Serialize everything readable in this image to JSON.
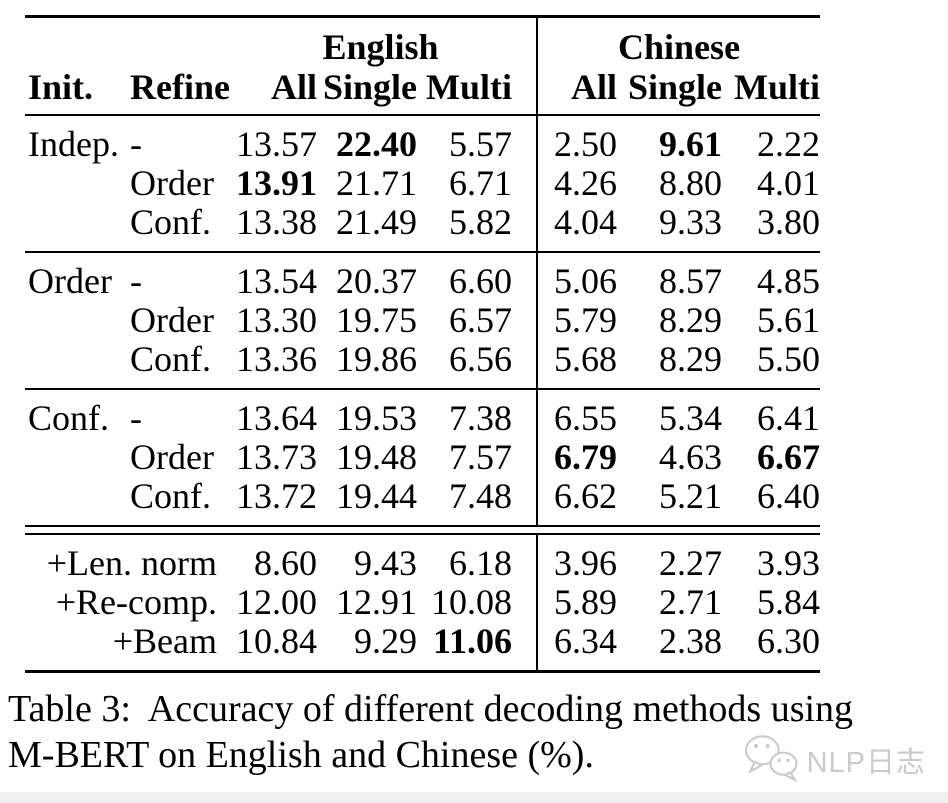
{
  "table": {
    "headers": {
      "init": "Init.",
      "refine": "Refine",
      "english": "English",
      "chinese": "Chinese",
      "all": "All",
      "single": "Single",
      "multi": "Multi"
    },
    "blocks": [
      {
        "init": "Indep.",
        "rows": [
          {
            "refine": "-",
            "cells": [
              {
                "v": "13.57"
              },
              {
                "v": "22.40",
                "bold": true
              },
              {
                "v": "5.57"
              },
              {
                "v": "2.50"
              },
              {
                "v": "9.61",
                "bold": true
              },
              {
                "v": "2.22"
              }
            ]
          },
          {
            "refine": "Order",
            "cells": [
              {
                "v": "13.91",
                "bold": true
              },
              {
                "v": "21.71"
              },
              {
                "v": "6.71"
              },
              {
                "v": "4.26"
              },
              {
                "v": "8.80"
              },
              {
                "v": "4.01"
              }
            ]
          },
          {
            "refine": "Conf.",
            "cells": [
              {
                "v": "13.38"
              },
              {
                "v": "21.49"
              },
              {
                "v": "5.82"
              },
              {
                "v": "4.04"
              },
              {
                "v": "9.33"
              },
              {
                "v": "3.80"
              }
            ]
          }
        ]
      },
      {
        "init": "Order",
        "rows": [
          {
            "refine": "-",
            "cells": [
              {
                "v": "13.54"
              },
              {
                "v": "20.37"
              },
              {
                "v": "6.60"
              },
              {
                "v": "5.06"
              },
              {
                "v": "8.57"
              },
              {
                "v": "4.85"
              }
            ]
          },
          {
            "refine": "Order",
            "cells": [
              {
                "v": "13.30"
              },
              {
                "v": "19.75"
              },
              {
                "v": "6.57"
              },
              {
                "v": "5.79"
              },
              {
                "v": "8.29"
              },
              {
                "v": "5.61"
              }
            ]
          },
          {
            "refine": "Conf.",
            "cells": [
              {
                "v": "13.36"
              },
              {
                "v": "19.86"
              },
              {
                "v": "6.56"
              },
              {
                "v": "5.68"
              },
              {
                "v": "8.29"
              },
              {
                "v": "5.50"
              }
            ]
          }
        ]
      },
      {
        "init": "Conf.",
        "rows": [
          {
            "refine": "-",
            "cells": [
              {
                "v": "13.64"
              },
              {
                "v": "19.53"
              },
              {
                "v": "7.38"
              },
              {
                "v": "6.55"
              },
              {
                "v": "5.34"
              },
              {
                "v": "6.41"
              }
            ]
          },
          {
            "refine": "Order",
            "cells": [
              {
                "v": "13.73"
              },
              {
                "v": "19.48"
              },
              {
                "v": "7.57"
              },
              {
                "v": "6.79",
                "bold": true
              },
              {
                "v": "4.63"
              },
              {
                "v": "6.67",
                "bold": true
              }
            ]
          },
          {
            "refine": "Conf.",
            "cells": [
              {
                "v": "13.72"
              },
              {
                "v": "19.44"
              },
              {
                "v": "7.48"
              },
              {
                "v": "6.62"
              },
              {
                "v": "5.21"
              },
              {
                "v": "6.40"
              }
            ]
          }
        ]
      }
    ],
    "extra_block": {
      "rows": [
        {
          "label": "+Len. norm",
          "cells": [
            {
              "v": "8.60"
            },
            {
              "v": "9.43"
            },
            {
              "v": "6.18"
            },
            {
              "v": "3.96"
            },
            {
              "v": "2.27"
            },
            {
              "v": "3.93"
            }
          ]
        },
        {
          "label": "+Re-comp.",
          "cells": [
            {
              "v": "12.00"
            },
            {
              "v": "12.91"
            },
            {
              "v": "10.08"
            },
            {
              "v": "5.89"
            },
            {
              "v": "2.71"
            },
            {
              "v": "5.84"
            }
          ]
        },
        {
          "label": "+Beam",
          "cells": [
            {
              "v": "10.84"
            },
            {
              "v": "9.29"
            },
            {
              "v": "11.06",
              "bold": true
            },
            {
              "v": "6.34"
            },
            {
              "v": "2.38"
            },
            {
              "v": "6.30"
            }
          ]
        }
      ]
    }
  },
  "caption": {
    "line1": "Table 3:  Accuracy of different decoding methods using",
    "line2": "M-BERT on English and Chinese (%)."
  },
  "watermark": {
    "text": "NLP日志",
    "color": "#cbcbcb"
  }
}
